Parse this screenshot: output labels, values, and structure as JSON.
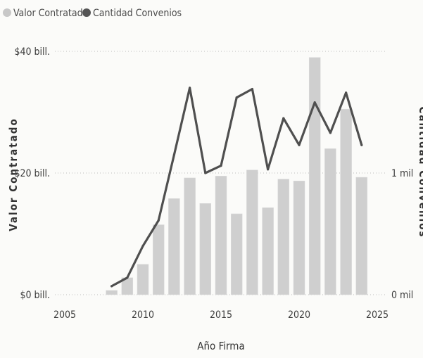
{
  "chart_data": {
    "type": "bar+line",
    "legend": [
      {
        "label": "Valor Contratado",
        "color": "#c8c8c8"
      },
      {
        "label": "Cantidad Convenios",
        "color": "#555555"
      }
    ],
    "legend_position": "top-left",
    "xlabel": "Año Firma",
    "ylabel_left": "Valor Contratado",
    "ylabel_right": "Cantidad Convenios",
    "x_ticks": [
      2005,
      2010,
      2015,
      2020,
      2025
    ],
    "xlim": [
      2005,
      2025
    ],
    "y_left_ticks": [
      "$0 bill.",
      "$20 bill.",
      "$40 bill."
    ],
    "y_left_tick_values": [
      0,
      20,
      40
    ],
    "ylim_left": [
      0,
      40
    ],
    "y_right_ticks": [
      "0 mil",
      "1 mil"
    ],
    "y_right_tick_values": [
      0,
      1000
    ],
    "ylim_right": [
      0,
      2000
    ],
    "grid": "horizontal dotted",
    "x": [
      2008,
      2009,
      2010,
      2011,
      2012,
      2013,
      2014,
      2015,
      2016,
      2017,
      2018,
      2019,
      2020,
      2021,
      2022,
      2023,
      2024
    ],
    "series": [
      {
        "name": "Valor Contratado",
        "type": "bar",
        "axis": "left",
        "unit": "bill.",
        "values": [
          0.7,
          2.8,
          5.0,
          11.5,
          15.8,
          19.2,
          15.0,
          19.5,
          13.3,
          20.5,
          14.3,
          19.0,
          18.7,
          39.0,
          24.0,
          30.5,
          19.3
        ]
      },
      {
        "name": "Cantidad Convenios",
        "type": "line",
        "axis": "right",
        "values": [
          70,
          140,
          400,
          610,
          1150,
          1700,
          1000,
          1060,
          1620,
          1690,
          1030,
          1450,
          1230,
          1580,
          1330,
          1660,
          1230
        ]
      }
    ]
  }
}
